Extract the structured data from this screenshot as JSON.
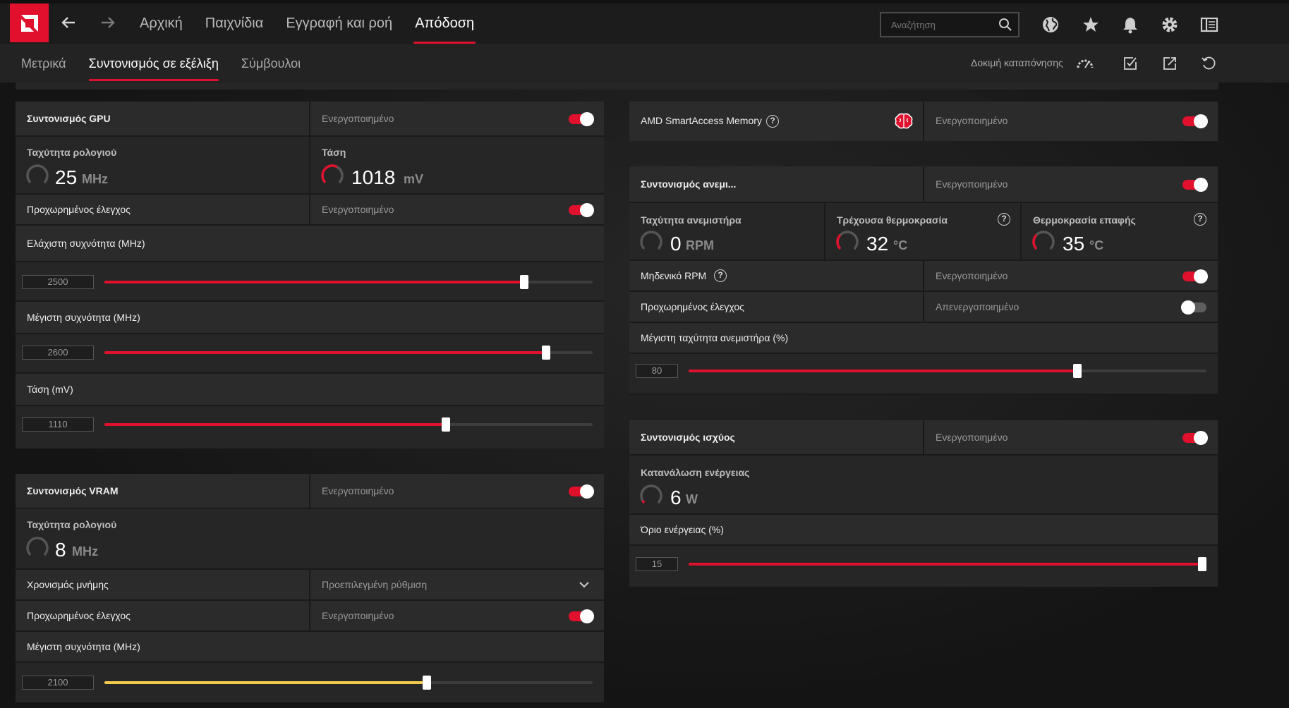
{
  "nav": {
    "main": [
      "Αρχική",
      "Παιχνίδια",
      "Εγγραφή και ροή",
      "Απόδοση"
    ],
    "active_main": 3,
    "sub": [
      "Μετρικά",
      "Συντονισμός σε εξέλιξη",
      "Σύμβουλοι"
    ],
    "active_sub": 1,
    "search_placeholder": "Αναζήτηση",
    "stress_test": "Δοκιμή καταπόνησης"
  },
  "colors": {
    "accent": "#e1102d",
    "vram_slider": "#f2c94c"
  },
  "gpu_tuning": {
    "title": "Συντονισμός GPU",
    "status": "Ενεργοποιημένο",
    "clock_label": "Ταχύτητα ρολογιού",
    "clock_value": "25",
    "clock_unit": "MHz",
    "voltage_label": "Τάση",
    "voltage_value": "1018",
    "voltage_unit": "mV",
    "advanced_label": "Προχωρημένος έλεγχος",
    "advanced_status": "Ενεργοποιημένο",
    "min_freq_label": "Ελάχιστη συχνότητα (MHz)",
    "min_freq_value": "2500",
    "min_freq_fraction": 0.86,
    "max_freq_label": "Μέγιστη συχνότητα (MHz)",
    "max_freq_value": "2600",
    "max_freq_fraction": 0.905,
    "voltage_slider_label": "Τάση (mV)",
    "voltage_slider_value": "1110",
    "voltage_slider_fraction": 0.7
  },
  "vram_tuning": {
    "title": "Συντονισμός VRAM",
    "status": "Ενεργοποιημένο",
    "clock_label": "Ταχύτητα ρολογιού",
    "clock_value": "8",
    "clock_unit": "MHz",
    "timing_label": "Χρονισμός μνήμης",
    "timing_value": "Προεπιλεγμένη ρύθμιση",
    "advanced_label": "Προχωρημένος έλεγχος",
    "advanced_status": "Ενεργοποιημένο",
    "max_freq_label": "Μέγιστη συχνότητα (MHz)",
    "max_freq_value": "2100",
    "max_freq_fraction": 0.66
  },
  "sam": {
    "title": "AMD SmartAccess Memory",
    "status": "Ενεργοποιημένο"
  },
  "fan_tuning": {
    "title": "Συντονισμός ανεμι...",
    "status": "Ενεργοποιημένο",
    "fan_speed_label": "Ταχύτητα ανεμιστήρα",
    "fan_speed_value": "0",
    "fan_speed_unit": "RPM",
    "temp_label": "Τρέχουσα θερμοκρασία",
    "temp_value": "32",
    "temp_unit": "°C",
    "junction_label": "Θερμοκρασία επαφής",
    "junction_value": "35",
    "junction_unit": "°C",
    "zero_rpm_label": "Μηδενικό RPM",
    "zero_rpm_status": "Ενεργοποιημένο",
    "advanced_label": "Προχωρημένος έλεγχος",
    "advanced_status": "Απενεργοποιημένο",
    "max_fan_label": "Μέγιστη ταχύτητα ανεμιστήρα (%)",
    "max_fan_value": "80",
    "max_fan_fraction": 0.75
  },
  "power_tuning": {
    "title": "Συντονισμός ισχύος",
    "status": "Ενεργοποιημένο",
    "consumption_label": "Κατανάλωση ενέργειας",
    "consumption_value": "6",
    "consumption_unit": "W",
    "limit_label": "Όριο ενέργειας (%)",
    "limit_value": "15",
    "limit_fraction": 1.0
  }
}
